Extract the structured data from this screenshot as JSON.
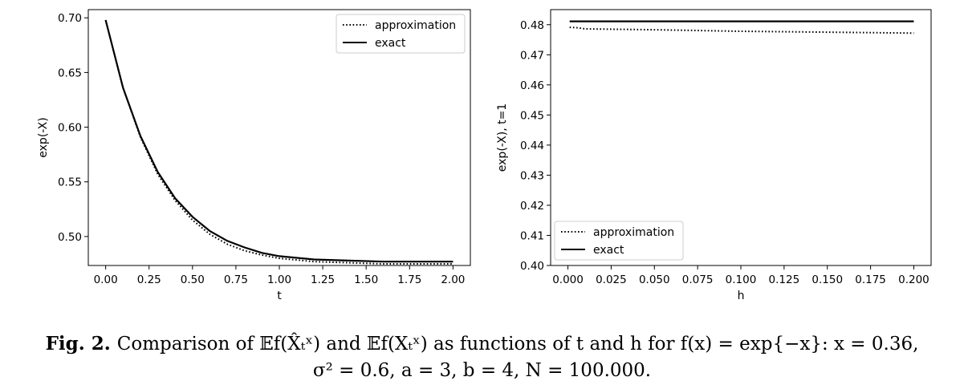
{
  "chart_data": [
    {
      "type": "line",
      "title": "",
      "xlabel": "t",
      "ylabel": "exp(-X)",
      "xlim": [
        -0.1,
        2.1
      ],
      "ylim": [
        0.4735,
        0.7075
      ],
      "xticks": [
        "0.00",
        "0.25",
        "0.50",
        "0.75",
        "1.00",
        "1.25",
        "1.50",
        "1.75",
        "2.00"
      ],
      "xtick_values": [
        0,
        0.25,
        0.5,
        0.75,
        1.0,
        1.25,
        1.5,
        1.75,
        2.0
      ],
      "yticks": [
        "0.50",
        "0.55",
        "0.60",
        "0.65",
        "0.70"
      ],
      "ytick_values": [
        0.5,
        0.55,
        0.6,
        0.65,
        0.7
      ],
      "legend": "top-right",
      "grid": false,
      "series": [
        {
          "name": "approximation",
          "style": "dotted",
          "x": [
            0,
            0.1,
            0.2,
            0.3,
            0.4,
            0.5,
            0.6,
            0.7,
            0.8,
            0.9,
            1.0,
            1.2,
            1.4,
            1.6,
            1.8,
            2.0
          ],
          "y": [
            0.698,
            0.636,
            0.591,
            0.557,
            0.533,
            0.515,
            0.502,
            0.493,
            0.487,
            0.483,
            0.48,
            0.477,
            0.476,
            0.475,
            0.475,
            0.475
          ]
        },
        {
          "name": "exact",
          "style": "solid",
          "x": [
            0,
            0.1,
            0.2,
            0.3,
            0.4,
            0.5,
            0.6,
            0.7,
            0.8,
            0.9,
            1.0,
            1.2,
            1.4,
            1.6,
            1.8,
            2.0
          ],
          "y": [
            0.698,
            0.636,
            0.592,
            0.559,
            0.535,
            0.518,
            0.505,
            0.496,
            0.49,
            0.485,
            0.482,
            0.479,
            0.478,
            0.477,
            0.477,
            0.477
          ]
        }
      ]
    },
    {
      "type": "line",
      "title": "",
      "xlabel": "h",
      "ylabel": "exp(-X), t=1",
      "xlim": [
        -0.01,
        0.21
      ],
      "ylim": [
        0.4,
        0.485
      ],
      "xticks": [
        "0.000",
        "0.025",
        "0.050",
        "0.075",
        "0.100",
        "0.125",
        "0.150",
        "0.175",
        "0.200"
      ],
      "xtick_values": [
        0,
        0.025,
        0.05,
        0.075,
        0.1,
        0.125,
        0.15,
        0.175,
        0.2
      ],
      "yticks": [
        "0.40",
        "0.41",
        "0.42",
        "0.43",
        "0.44",
        "0.45",
        "0.46",
        "0.47",
        "0.48"
      ],
      "ytick_values": [
        0.4,
        0.41,
        0.42,
        0.43,
        0.44,
        0.45,
        0.46,
        0.47,
        0.48
      ],
      "legend": "bottom-left",
      "grid": false,
      "series": [
        {
          "name": "approximation",
          "style": "dotted",
          "x": [
            0.001,
            0.005,
            0.01,
            0.05,
            0.1,
            0.15,
            0.2
          ],
          "y": [
            0.4791,
            0.479,
            0.4786,
            0.4783,
            0.4778,
            0.4775,
            0.4772
          ]
        },
        {
          "name": "exact",
          "style": "solid",
          "x": [
            0.001,
            0.2
          ],
          "y": [
            0.4811,
            0.4811
          ]
        }
      ]
    }
  ],
  "caption": {
    "label": "Fig. 2.",
    "line1": "Comparison of 𝔼f(X̂ₜˣ) and 𝔼f(Xₜˣ) as functions of t and h for f(x) = exp{−x}: x = 0.36,",
    "line2": "σ² = 0.6, a = 3, b = 4, N = 100.000."
  }
}
